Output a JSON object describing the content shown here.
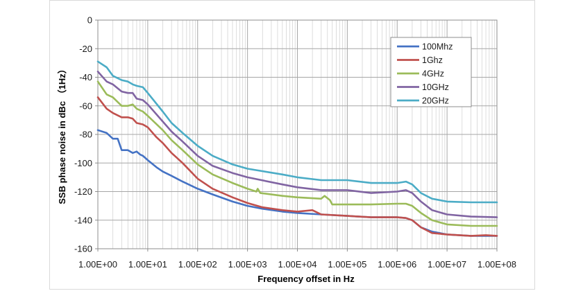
{
  "chart_data": {
    "type": "line",
    "xlabel": "Frequency offset in Hz",
    "ylabel": "SSB phase noise in dBc （1Hz）",
    "x_scale": "log",
    "xlim": [
      1,
      100000000
    ],
    "ylim": [
      -160,
      0
    ],
    "x_tick_labels": [
      "1.00E+00",
      "1.00E+01",
      "1.00E+02",
      "1.00E+03",
      "1.00E+04",
      "1.00E+05",
      "1.00E+06",
      "1.00E+07",
      "1.00E+08"
    ],
    "y_ticks": [
      0,
      -20,
      -40,
      -60,
      -80,
      -100,
      -120,
      -140,
      -160
    ],
    "grid": true,
    "legend_position": "top-right",
    "colors": {
      "grid_major": "#a6a6a6",
      "grid_minor": "#d4d4d4",
      "frame": "#8c8c8c",
      "outer_border": "#d9d9d9",
      "legend_border": "#8c8c8c"
    },
    "series": [
      {
        "name": "100Mhz",
        "color": "#4472c4",
        "points": [
          [
            1,
            -77
          ],
          [
            1.5,
            -79
          ],
          [
            2,
            -83
          ],
          [
            2.5,
            -83
          ],
          [
            3,
            -91
          ],
          [
            4,
            -91
          ],
          [
            5,
            -93
          ],
          [
            6,
            -92
          ],
          [
            7,
            -94
          ],
          [
            8,
            -95
          ],
          [
            10,
            -98
          ],
          [
            15,
            -103
          ],
          [
            20,
            -106
          ],
          [
            30,
            -109
          ],
          [
            50,
            -113
          ],
          [
            100,
            -118
          ],
          [
            200,
            -122
          ],
          [
            500,
            -127
          ],
          [
            1000,
            -130
          ],
          [
            2000,
            -132
          ],
          [
            5000,
            -134
          ],
          [
            10000,
            -135
          ],
          [
            30000,
            -136
          ],
          [
            100000,
            -137
          ],
          [
            300000,
            -138
          ],
          [
            1000000,
            -138
          ],
          [
            1500000,
            -138.5
          ],
          [
            2000000,
            -140
          ],
          [
            3000000,
            -145
          ],
          [
            5000000,
            -148
          ],
          [
            10000000,
            -150
          ],
          [
            30000000,
            -151
          ],
          [
            60000000,
            -151
          ],
          [
            100000000,
            -151
          ]
        ]
      },
      {
        "name": "1Ghz",
        "color": "#c0504d",
        "points": [
          [
            1,
            -54
          ],
          [
            1.5,
            -62
          ],
          [
            2,
            -65
          ],
          [
            3,
            -68
          ],
          [
            4,
            -68
          ],
          [
            5,
            -69
          ],
          [
            6,
            -72
          ],
          [
            8,
            -73
          ],
          [
            10,
            -75
          ],
          [
            15,
            -82
          ],
          [
            20,
            -86
          ],
          [
            30,
            -93
          ],
          [
            50,
            -100
          ],
          [
            100,
            -111
          ],
          [
            200,
            -118
          ],
          [
            500,
            -124
          ],
          [
            1000,
            -128
          ],
          [
            2000,
            -131
          ],
          [
            5000,
            -133
          ],
          [
            10000,
            -134
          ],
          [
            20000,
            -133
          ],
          [
            30000,
            -136
          ],
          [
            100000,
            -137
          ],
          [
            300000,
            -138
          ],
          [
            1000000,
            -138
          ],
          [
            1500000,
            -138.5
          ],
          [
            2000000,
            -140
          ],
          [
            3000000,
            -145
          ],
          [
            5000000,
            -149
          ],
          [
            10000000,
            -150
          ],
          [
            30000000,
            -151
          ],
          [
            60000000,
            -150.5
          ],
          [
            100000000,
            -151
          ]
        ]
      },
      {
        "name": "4GHz",
        "color": "#9bbb59",
        "points": [
          [
            1,
            -43
          ],
          [
            1.5,
            -52
          ],
          [
            2,
            -54
          ],
          [
            3,
            -60
          ],
          [
            4,
            -60
          ],
          [
            5,
            -59
          ],
          [
            6,
            -62
          ],
          [
            8,
            -64
          ],
          [
            10,
            -67
          ],
          [
            20,
            -77
          ],
          [
            30,
            -84
          ],
          [
            50,
            -91
          ],
          [
            100,
            -101
          ],
          [
            200,
            -108
          ],
          [
            500,
            -114
          ],
          [
            1000,
            -118
          ],
          [
            1500,
            -120
          ],
          [
            1600,
            -118
          ],
          [
            1800,
            -121
          ],
          [
            5000,
            -123
          ],
          [
            10000,
            -124
          ],
          [
            30000,
            -125
          ],
          [
            35000,
            -123
          ],
          [
            45000,
            -126
          ],
          [
            50000,
            -129
          ],
          [
            100000,
            -129
          ],
          [
            300000,
            -129
          ],
          [
            1000000,
            -128.5
          ],
          [
            1500000,
            -128.5
          ],
          [
            2000000,
            -130
          ],
          [
            3000000,
            -135
          ],
          [
            5000000,
            -140
          ],
          [
            10000000,
            -143
          ],
          [
            30000000,
            -144
          ],
          [
            100000000,
            -144
          ]
        ]
      },
      {
        "name": "10GHz",
        "color": "#8064a2",
        "points": [
          [
            1,
            -36
          ],
          [
            1.5,
            -43
          ],
          [
            2,
            -45
          ],
          [
            3,
            -50
          ],
          [
            4,
            -51
          ],
          [
            5,
            -51
          ],
          [
            6,
            -55
          ],
          [
            8,
            -56
          ],
          [
            10,
            -59
          ],
          [
            20,
            -71
          ],
          [
            30,
            -78
          ],
          [
            50,
            -85
          ],
          [
            100,
            -95
          ],
          [
            200,
            -102
          ],
          [
            500,
            -107
          ],
          [
            1000,
            -110
          ],
          [
            5000,
            -115
          ],
          [
            10000,
            -117
          ],
          [
            30000,
            -119
          ],
          [
            100000,
            -119
          ],
          [
            300000,
            -121
          ],
          [
            1000000,
            -120
          ],
          [
            1500000,
            -119
          ],
          [
            2000000,
            -121
          ],
          [
            3000000,
            -127
          ],
          [
            5000000,
            -133
          ],
          [
            10000000,
            -136
          ],
          [
            30000000,
            -137.5
          ],
          [
            100000000,
            -138
          ]
        ]
      },
      {
        "name": "20GHz",
        "color": "#4bacc6",
        "points": [
          [
            1,
            -29
          ],
          [
            1.5,
            -33
          ],
          [
            2,
            -39
          ],
          [
            3,
            -42
          ],
          [
            4,
            -43
          ],
          [
            5,
            -45
          ],
          [
            6,
            -46
          ],
          [
            8,
            -47
          ],
          [
            10,
            -51
          ],
          [
            20,
            -64
          ],
          [
            30,
            -72
          ],
          [
            50,
            -79
          ],
          [
            100,
            -88
          ],
          [
            200,
            -95
          ],
          [
            500,
            -101
          ],
          [
            1000,
            -104
          ],
          [
            5000,
            -108
          ],
          [
            10000,
            -110
          ],
          [
            30000,
            -112
          ],
          [
            100000,
            -112
          ],
          [
            300000,
            -114
          ],
          [
            1000000,
            -114
          ],
          [
            1500000,
            -113
          ],
          [
            2000000,
            -115
          ],
          [
            3000000,
            -121
          ],
          [
            5000000,
            -125
          ],
          [
            10000000,
            -127
          ],
          [
            30000000,
            -127.5
          ],
          [
            100000000,
            -127.5
          ]
        ]
      }
    ]
  }
}
